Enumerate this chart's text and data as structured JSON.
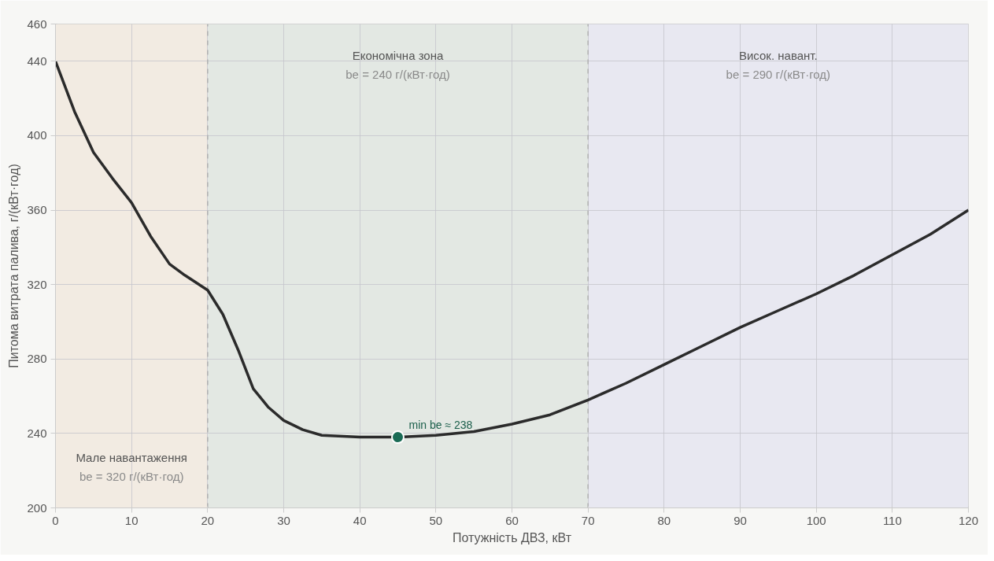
{
  "chart_data": {
    "type": "line",
    "xlabel": "Потужність ДВЗ, кВт",
    "ylabel": "Питома витрата палива, г/(кВт·год)",
    "xlim": [
      0,
      120
    ],
    "ylim": [
      200,
      460
    ],
    "xticks": [
      0,
      10,
      20,
      30,
      40,
      50,
      60,
      70,
      80,
      90,
      100,
      110,
      120
    ],
    "yticks": [
      200,
      240,
      280,
      320,
      360,
      400,
      440,
      460
    ],
    "grid": true,
    "line_style": "solid",
    "series": [
      {
        "color": "#2b2b2b",
        "x": [
          0,
          2.5,
          5,
          7.5,
          10,
          12.5,
          15,
          17,
          20,
          22,
          24,
          26,
          28,
          30,
          32.5,
          35,
          40,
          45,
          50,
          55,
          60,
          65,
          70,
          75,
          80,
          85,
          90,
          95,
          100,
          105,
          110,
          115,
          120
        ],
        "values": [
          440,
          413,
          391,
          377,
          364,
          346,
          331,
          325,
          317,
          304,
          285,
          264,
          254,
          247,
          242,
          239,
          238,
          238,
          239,
          241,
          245,
          250,
          258,
          267,
          277,
          287,
          297,
          306,
          315,
          325,
          336,
          347,
          360
        ]
      },
      {
        "type": "scatter",
        "marker": "circle",
        "color": "#1a6b55",
        "x": [
          45
        ],
        "values": [
          238
        ]
      }
    ],
    "bands": [
      {
        "axis": "x",
        "from": 0,
        "to": 20,
        "label": "Мале навантаження\nbe = 320 г/(кВт·год)",
        "color": "#f2ebe2"
      },
      {
        "axis": "x",
        "from": 20,
        "to": 70,
        "label": "Економічна зона\nbe = 240 г/(кВт·год)",
        "color": "#e3e8e3"
      },
      {
        "axis": "x",
        "from": 70,
        "to": 120,
        "label": "Висок. навант.\nbe = 290 г/(кВт·год)",
        "color": "#e8e8f1"
      }
    ],
    "annotations": [
      {
        "text": "min be ≈ 238",
        "x": 45,
        "y": 238
      }
    ]
  }
}
